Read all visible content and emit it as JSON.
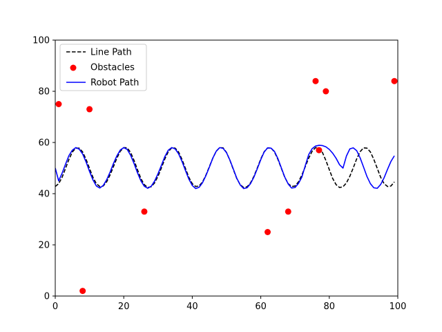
{
  "chart_data": {
    "type": "line",
    "title": "",
    "xlabel": "",
    "ylabel": "",
    "xlim": [
      0,
      100
    ],
    "ylim": [
      0,
      100
    ],
    "xticks": [
      0,
      20,
      40,
      60,
      80,
      100
    ],
    "yticks": [
      0,
      20,
      40,
      60,
      80,
      100
    ],
    "grid": false,
    "legend_position": "top-left",
    "series": [
      {
        "name": "Line Path",
        "kind": "line",
        "style": "dashed",
        "color": "#000000",
        "equation": "y = 50 + 8*sin(2*pi*(x - 2.5)/14)",
        "x": [
          0,
          1,
          2,
          3,
          4,
          5,
          6,
          7,
          8,
          9,
          10,
          11,
          12,
          13,
          14,
          15,
          16,
          17,
          18,
          19,
          20,
          21,
          22,
          23,
          24,
          25,
          26,
          27,
          28,
          29,
          30,
          31,
          32,
          33,
          34,
          35,
          36,
          37,
          38,
          39,
          40,
          41,
          42,
          43,
          44,
          45,
          46,
          47,
          48,
          49,
          50,
          51,
          52,
          53,
          54,
          55,
          56,
          57,
          58,
          59,
          60,
          61,
          62,
          63,
          64,
          65,
          66,
          67,
          68,
          69,
          70,
          71,
          72,
          73,
          74,
          75,
          76,
          77,
          78,
          79,
          80,
          81,
          82,
          83,
          84,
          85,
          86,
          87,
          88,
          89,
          90,
          91,
          92,
          93,
          94,
          95,
          96,
          97,
          98,
          99
        ],
        "y": [
          42.8,
          43.9,
          46.4,
          49.9,
          53.4,
          56.3,
          57.8,
          57.8,
          56.3,
          53.4,
          49.9,
          46.4,
          43.9,
          42.8,
          43.0,
          44.6,
          47.3,
          50.6,
          53.9,
          56.6,
          58.0,
          57.9,
          56.1,
          53.0,
          49.4,
          45.9,
          43.5,
          42.4,
          42.7,
          44.2,
          46.8,
          50.1,
          53.6,
          56.4,
          57.9,
          57.8,
          56.3,
          53.4,
          49.9,
          46.4,
          43.9,
          42.8,
          43.0,
          44.6,
          47.3,
          50.6,
          53.9,
          56.6,
          58.0,
          57.9,
          56.1,
          53.0,
          49.4,
          45.9,
          43.5,
          42.4,
          42.7,
          44.2,
          46.8,
          50.1,
          53.6,
          56.4,
          57.9,
          57.8,
          56.3,
          53.4,
          49.9,
          46.4,
          43.9,
          42.8,
          43.0,
          44.6,
          47.3,
          50.6,
          53.9,
          56.6,
          58.0,
          57.9,
          56.1,
          53.0,
          49.4,
          45.9,
          43.5,
          42.4,
          42.7,
          44.2,
          46.8,
          50.1,
          53.6,
          56.4,
          57.9,
          57.8,
          56.3,
          53.4,
          49.9,
          46.4,
          43.9,
          42.8,
          43.0,
          44.6
        ]
      },
      {
        "name": "Obstacles",
        "kind": "scatter",
        "color": "#ff0000",
        "x": [
          1,
          8,
          10,
          26,
          62,
          68,
          76,
          77,
          79,
          99
        ],
        "y": [
          75,
          2,
          73,
          33,
          25,
          33,
          84,
          57,
          80,
          84
        ]
      },
      {
        "name": "Robot Path",
        "kind": "line",
        "style": "solid",
        "color": "#0000ff",
        "x": [
          0,
          1,
          2,
          3,
          4,
          5,
          6,
          7,
          8,
          9,
          10,
          11,
          12,
          13,
          14,
          15,
          16,
          17,
          18,
          19,
          20,
          21,
          22,
          23,
          24,
          25,
          26,
          27,
          28,
          29,
          30,
          31,
          32,
          33,
          34,
          35,
          36,
          37,
          38,
          39,
          40,
          41,
          42,
          43,
          44,
          45,
          46,
          47,
          48,
          49,
          50,
          51,
          52,
          53,
          54,
          55,
          56,
          57,
          58,
          59,
          60,
          61,
          62,
          63,
          64,
          65,
          66,
          67,
          68,
          69,
          70,
          71,
          72,
          73,
          74,
          75,
          76,
          77,
          78,
          79,
          80,
          81,
          82,
          83,
          84,
          85,
          86,
          87,
          88,
          89,
          90,
          91,
          92,
          93,
          94,
          95,
          96,
          97,
          98,
          99
        ],
        "y": [
          50.0,
          45.0,
          48.0,
          51.5,
          54.9,
          57.0,
          58.0,
          57.4,
          55.5,
          52.4,
          48.7,
          45.4,
          43.0,
          42.2,
          43.2,
          45.4,
          48.4,
          51.8,
          54.8,
          57.1,
          58.0,
          57.3,
          55.0,
          51.8,
          48.2,
          45.0,
          42.9,
          42.1,
          42.9,
          44.9,
          47.8,
          51.1,
          54.5,
          57.0,
          58.0,
          57.5,
          55.6,
          52.6,
          49.1,
          45.7,
          43.2,
          42.0,
          42.5,
          44.3,
          47.1,
          50.4,
          53.9,
          56.6,
          58.0,
          57.7,
          56.0,
          53.1,
          49.6,
          46.0,
          43.4,
          42.0,
          42.3,
          43.9,
          46.5,
          49.8,
          53.3,
          56.3,
          57.9,
          57.8,
          56.5,
          53.7,
          50.1,
          46.5,
          43.8,
          42.2,
          42.4,
          44.0,
          46.5,
          51.0,
          55.3,
          57.6,
          58.6,
          58.9,
          58.8,
          58.3,
          57.3,
          55.8,
          53.8,
          51.3,
          50.0,
          54.7,
          57.5,
          57.9,
          56.8,
          54.0,
          50.4,
          46.7,
          43.9,
          42.3,
          42.1,
          43.6,
          46.2,
          49.5,
          52.6,
          54.8
        ]
      }
    ]
  }
}
